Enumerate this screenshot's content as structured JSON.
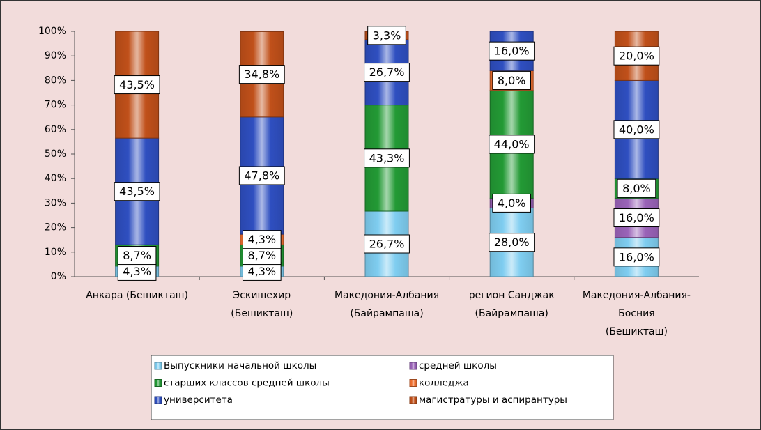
{
  "chart_data": {
    "type": "bar",
    "stacked": true,
    "categories": [
      "Анкара (Бешикташ)",
      "Эскишехир (Бешикташ)",
      "Македония-Албания (Байрампаша)",
      "регион Санджак (Байрампаша)",
      "Македония-Албания-Босния (Бешикташ)"
    ],
    "series": [
      {
        "name": "Выпускники начальной школы",
        "color": "#7fcdf0",
        "values": [
          4.3,
          4.3,
          26.7,
          28,
          16
        ],
        "value_labels": [
          "4,3%",
          "4,3%",
          "26,7%",
          "28,0%",
          "16,0%"
        ]
      },
      {
        "name": "средней школы",
        "color": "#9a63b8",
        "values": [
          0,
          0,
          0,
          4,
          16
        ],
        "value_labels": [
          null,
          null,
          null,
          "4,0%",
          "16,0%"
        ]
      },
      {
        "name": "старших классов средней школы",
        "color": "#239a35",
        "values": [
          8.7,
          8.7,
          43.3,
          44,
          8
        ],
        "value_labels": [
          "8,7%",
          "8,7%",
          "43,3%",
          "44,0%",
          "8,0%"
        ]
      },
      {
        "name": "колледжа",
        "color": "#f07030",
        "values": [
          0,
          4.3,
          0,
          8,
          0
        ],
        "value_labels": [
          null,
          "4,3%",
          null,
          "8,0%",
          null
        ]
      },
      {
        "name": "университета",
        "color": "#2f4fc0",
        "values": [
          43.5,
          47.8,
          26.7,
          16,
          40
        ],
        "value_labels": [
          "43,5%",
          "47,8%",
          "26,7%",
          "16,0%",
          "40,0%"
        ]
      },
      {
        "name": "магистратуры и аспирантуры",
        "color": "#c0501a",
        "values": [
          43.5,
          34.8,
          3.3,
          0,
          20
        ],
        "value_labels": [
          "43,5%",
          "34,8%",
          "3,3%",
          null,
          "20,0%"
        ]
      }
    ],
    "ylim": [
      0,
      100
    ],
    "yticks": [
      {
        "value": 0,
        "label": "0%"
      },
      {
        "value": 10,
        "label": "10%"
      },
      {
        "value": 20,
        "label": "20%"
      },
      {
        "value": 30,
        "label": "30%"
      },
      {
        "value": 40,
        "label": "40%"
      },
      {
        "value": 50,
        "label": "50%"
      },
      {
        "value": 60,
        "label": "60%"
      },
      {
        "value": 70,
        "label": "70%"
      },
      {
        "value": 80,
        "label": "80%"
      },
      {
        "value": 90,
        "label": "90%"
      },
      {
        "value": 100,
        "label": "100%"
      }
    ],
    "legend": "bottom"
  }
}
